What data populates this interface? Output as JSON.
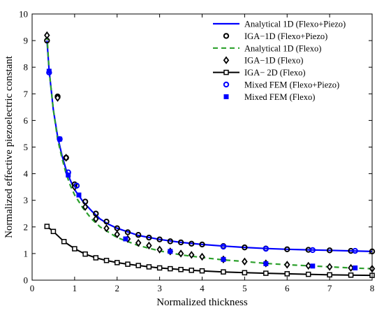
{
  "chart_data": {
    "type": "line",
    "xlabel": "Normalized thickness",
    "ylabel": "Normalized effective piezoelectric constant",
    "xlim": [
      0,
      8
    ],
    "ylim": [
      0,
      10
    ],
    "xticks": [
      0,
      1,
      2,
      3,
      4,
      5,
      6,
      7,
      8
    ],
    "yticks": [
      0,
      1,
      2,
      3,
      4,
      5,
      6,
      7,
      8,
      9,
      10
    ],
    "grid": false,
    "legend_position": "top-right",
    "series": [
      {
        "name": "Analytical 1D (Flexo+Piezo)",
        "style": "solid-line",
        "color": "#0000ff",
        "x": [
          0.35,
          0.4,
          0.5,
          0.6,
          0.7,
          0.8,
          0.9,
          1.0,
          1.2,
          1.4,
          1.6,
          1.8,
          2.0,
          2.5,
          3.0,
          3.5,
          4.0,
          4.5,
          5.0,
          5.5,
          6.0,
          6.5,
          7.0,
          7.5,
          8.0
        ],
        "y": [
          9.0,
          7.9,
          6.4,
          5.4,
          4.7,
          4.15,
          3.75,
          3.4,
          2.95,
          2.6,
          2.3,
          2.1,
          1.95,
          1.68,
          1.53,
          1.42,
          1.34,
          1.28,
          1.23,
          1.19,
          1.16,
          1.14,
          1.12,
          1.1,
          1.08
        ]
      },
      {
        "name": "IGA−1D (Flexo+Piezo)",
        "style": "circle-marker",
        "color": "#000000",
        "x": [
          0.35,
          0.6,
          0.8,
          1.0,
          1.25,
          1.5,
          1.75,
          2.0,
          2.25,
          2.5,
          2.75,
          3.0,
          3.25,
          3.5,
          3.75,
          4.0,
          4.5,
          5.0,
          5.5,
          6.0,
          6.5,
          7.0,
          7.5,
          8.0
        ],
        "y": [
          9.0,
          6.9,
          4.6,
          3.6,
          2.95,
          2.5,
          2.2,
          1.95,
          1.8,
          1.7,
          1.6,
          1.53,
          1.46,
          1.42,
          1.37,
          1.34,
          1.28,
          1.23,
          1.19,
          1.16,
          1.14,
          1.12,
          1.1,
          1.08
        ]
      },
      {
        "name": "Analytical 1D (Flexo)",
        "style": "dashed-line",
        "color": "#2ca02c",
        "x": [
          0.35,
          0.4,
          0.5,
          0.6,
          0.7,
          0.8,
          0.9,
          1.0,
          1.2,
          1.4,
          1.6,
          1.8,
          2.0,
          2.5,
          3.0,
          3.5,
          4.0,
          4.5,
          5.0,
          5.5,
          6.0,
          6.5,
          7.0,
          7.5,
          8.0
        ],
        "y": [
          9.2,
          7.9,
          6.4,
          5.3,
          4.6,
          4.0,
          3.55,
          3.2,
          2.7,
          2.3,
          2.0,
          1.8,
          1.6,
          1.3,
          1.1,
          0.95,
          0.85,
          0.76,
          0.7,
          0.63,
          0.58,
          0.54,
          0.5,
          0.46,
          0.43
        ]
      },
      {
        "name": "IGA−1D (Flexo)",
        "style": "diamond-marker",
        "color": "#000000",
        "x": [
          0.35,
          0.6,
          0.8,
          1.0,
          1.25,
          1.5,
          1.75,
          2.0,
          2.25,
          2.5,
          2.75,
          3.0,
          3.25,
          3.5,
          3.75,
          4.0,
          4.5,
          5.0,
          5.5,
          6.0,
          6.5,
          7.0,
          7.5,
          8.0
        ],
        "y": [
          9.2,
          6.85,
          4.6,
          3.5,
          2.75,
          2.3,
          1.95,
          1.72,
          1.55,
          1.4,
          1.3,
          1.15,
          1.08,
          1.0,
          0.95,
          0.88,
          0.78,
          0.7,
          0.63,
          0.58,
          0.54,
          0.5,
          0.46,
          0.43
        ]
      },
      {
        "name": "IGA− 2D (Flexo)",
        "style": "solid-line-square-marker",
        "color": "#000000",
        "x": [
          0.35,
          0.5,
          0.75,
          1.0,
          1.25,
          1.5,
          1.75,
          2.0,
          2.25,
          2.5,
          2.75,
          3.0,
          3.25,
          3.5,
          3.75,
          4.0,
          4.5,
          5.0,
          5.5,
          6.0,
          6.5,
          7.0,
          7.5,
          8.0
        ],
        "y": [
          2.02,
          1.83,
          1.45,
          1.18,
          0.98,
          0.84,
          0.74,
          0.66,
          0.6,
          0.55,
          0.5,
          0.46,
          0.43,
          0.4,
          0.37,
          0.35,
          0.31,
          0.28,
          0.26,
          0.24,
          0.22,
          0.2,
          0.19,
          0.18
        ]
      },
      {
        "name": "Mixed FEM (Flexo+Piezo)",
        "style": "circle-marker",
        "color": "#0000ff",
        "x": [
          0.4,
          0.65,
          0.85,
          1.05,
          4.5,
          5.5,
          6.6,
          7.6
        ],
        "y": [
          7.8,
          5.3,
          4.05,
          3.55,
          1.26,
          1.18,
          1.13,
          1.1
        ]
      },
      {
        "name": "Mixed FEM (Flexo)",
        "style": "square-marker",
        "color": "#0000ff",
        "x": [
          0.4,
          0.65,
          0.85,
          1.1,
          2.2,
          3.25,
          4.5,
          5.5,
          6.6,
          7.6
        ],
        "y": [
          7.85,
          5.3,
          3.95,
          3.2,
          1.55,
          1.08,
          0.78,
          0.62,
          0.53,
          0.46
        ]
      }
    ]
  }
}
